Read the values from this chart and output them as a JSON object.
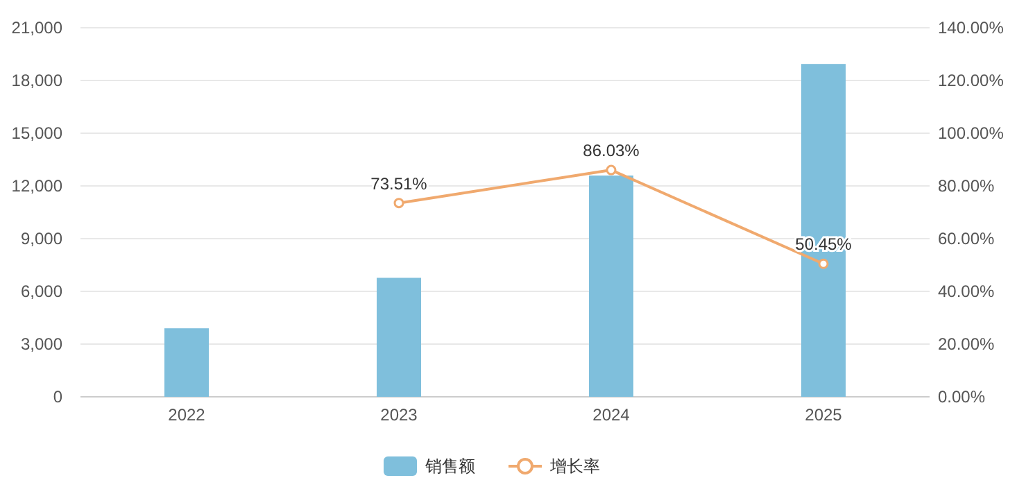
{
  "chart_data": {
    "type": "bar",
    "categories": [
      "2022",
      "2023",
      "2024",
      "2025"
    ],
    "series": [
      {
        "name": "销售额",
        "color": "#7fbfdc",
        "values": [
          3900,
          6770,
          12590,
          18940
        ]
      },
      {
        "name": "增长率",
        "type": "line",
        "axis": "y2",
        "color": "#f0a96e",
        "marker": "circle",
        "values": [
          null,
          73.51,
          86.03,
          50.45
        ],
        "value_labels": [
          null,
          "73.51%",
          "86.03%",
          "50.45%"
        ]
      }
    ],
    "ylim": [
      0,
      21000
    ],
    "yticks": [
      {
        "value": 0,
        "label": "0"
      },
      {
        "value": 3000,
        "label": "3,000"
      },
      {
        "value": 6000,
        "label": "6,000"
      },
      {
        "value": 9000,
        "label": "9,000"
      },
      {
        "value": 12000,
        "label": "12,000"
      },
      {
        "value": 15000,
        "label": "15,000"
      },
      {
        "value": 18000,
        "label": "18,000"
      },
      {
        "value": 21000,
        "label": "21,000"
      }
    ],
    "y2lim": [
      0,
      140
    ],
    "y2ticks": [
      {
        "value": 0,
        "label": "0.00%"
      },
      {
        "value": 20,
        "label": "20.00%"
      },
      {
        "value": 40,
        "label": "40.00%"
      },
      {
        "value": 60,
        "label": "60.00%"
      },
      {
        "value": 80,
        "label": "80.00%"
      },
      {
        "value": 100,
        "label": "100.00%"
      },
      {
        "value": 120,
        "label": "120.00%"
      },
      {
        "value": 140,
        "label": "140.00%"
      }
    ],
    "grid": "y",
    "legend": "bottom"
  }
}
